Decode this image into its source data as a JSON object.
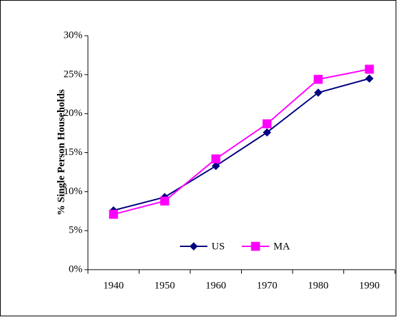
{
  "chart_data": {
    "type": "line",
    "y_label": "% Single Person Households",
    "categories": [
      "1940",
      "1950",
      "1960",
      "1970",
      "1980",
      "1990"
    ],
    "series": [
      {
        "name": "US",
        "color": "#000080",
        "marker": "diamond",
        "values": [
          7.6,
          9.3,
          13.3,
          17.6,
          22.7,
          24.5
        ]
      },
      {
        "name": "MA",
        "color": "#ff00ff",
        "marker": "square",
        "values": [
          7.1,
          8.8,
          14.2,
          18.7,
          24.4,
          25.7
        ]
      }
    ],
    "ylim": [
      0,
      30
    ],
    "yticks": [
      {
        "value": 0,
        "label": "0%"
      },
      {
        "value": 5,
        "label": "5%"
      },
      {
        "value": 10,
        "label": "10%"
      },
      {
        "value": 15,
        "label": "15%"
      },
      {
        "value": 20,
        "label": "20%"
      },
      {
        "value": 25,
        "label": "25%"
      },
      {
        "value": 30,
        "label": "30%"
      }
    ],
    "grid": false
  }
}
